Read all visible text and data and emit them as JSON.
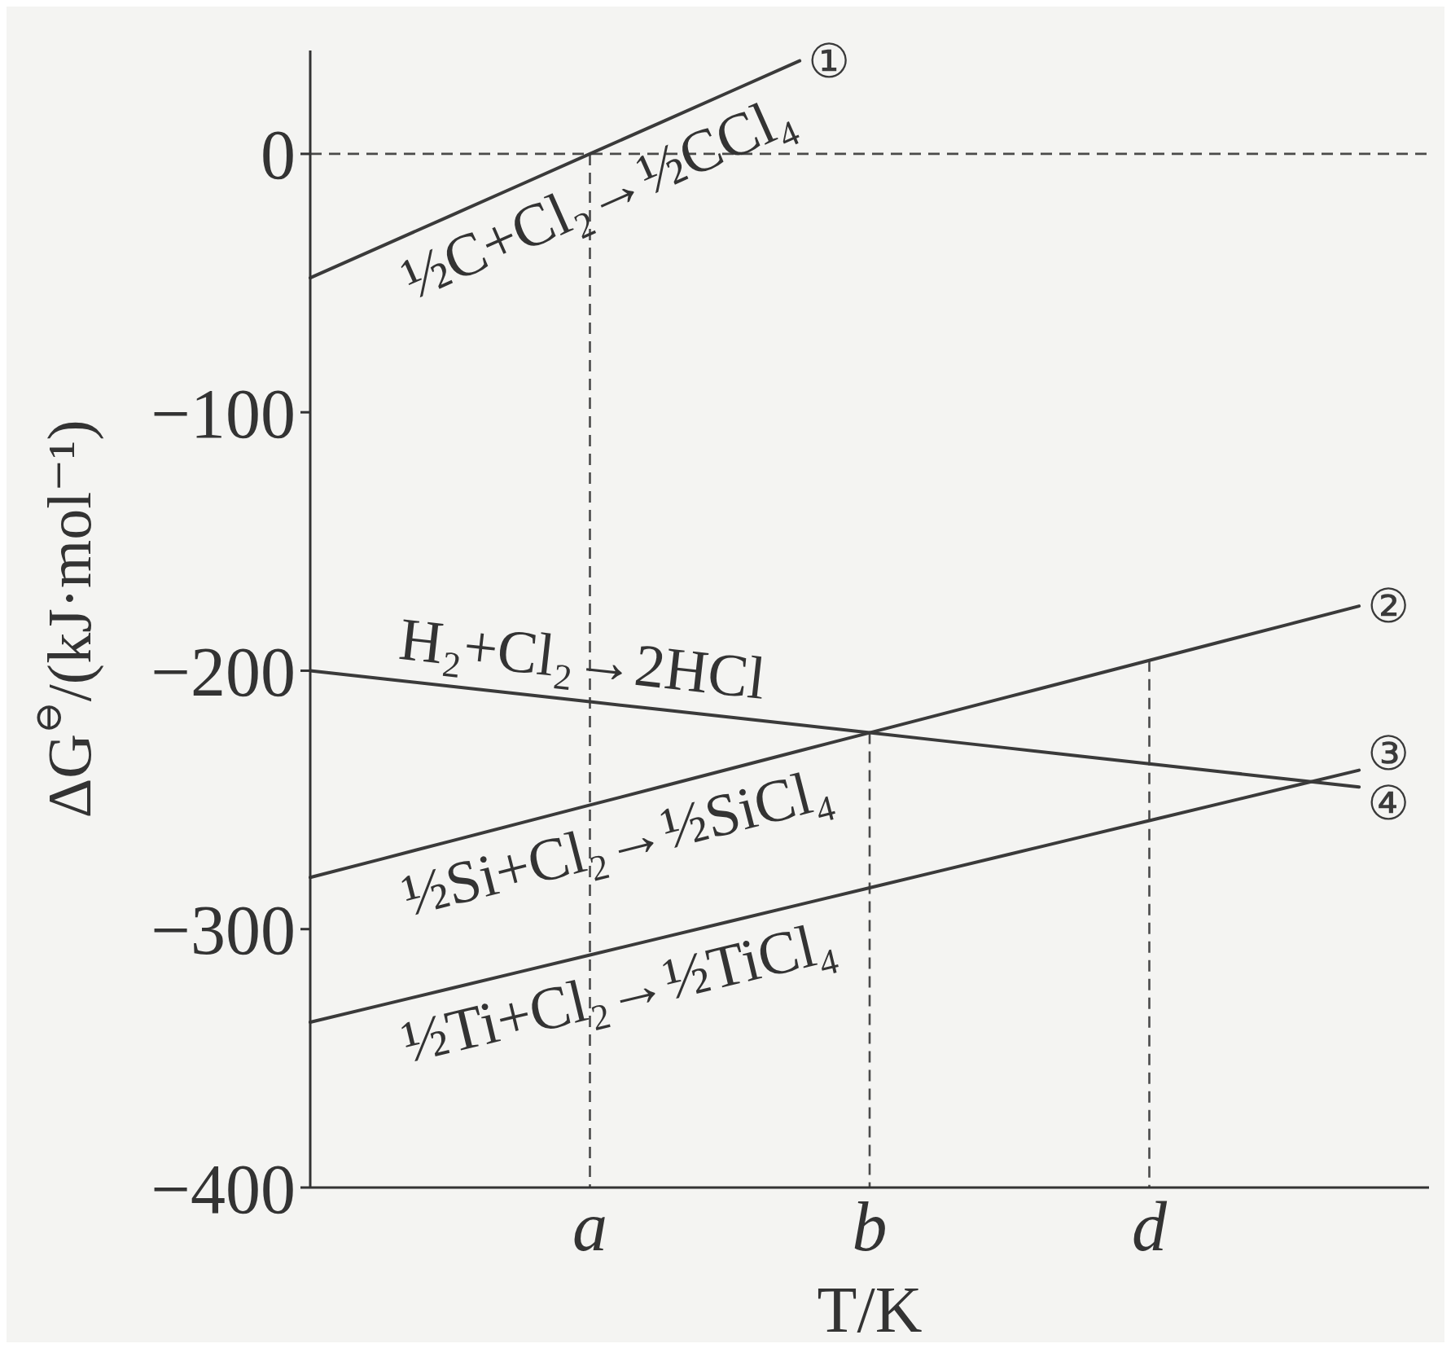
{
  "chart_data": {
    "type": "line",
    "xlabel": "T/K",
    "ylabel": "ΔG$^{⊖}$/(kJ·mol⁻¹)",
    "categories": [
      null,
      null,
      null,
      null,
      "a",
      null,
      null,
      null,
      "b",
      null,
      null,
      null,
      "d",
      null,
      null,
      null,
      null
    ],
    "ylim": [
      -400,
      40
    ],
    "yticks": [
      -400,
      -300,
      -200,
      -100,
      0
    ],
    "marker": "none",
    "line_style": "solid",
    "series": [
      {
        "name": "①",
        "color": "#3a3a3a",
        "values": [
          -48,
          -36,
          -24,
          -12,
          0,
          12,
          24,
          36,
          null,
          null,
          null,
          null,
          null,
          null,
          null,
          null,
          null
        ]
      },
      {
        "name": "②",
        "color": "#3a3a3a",
        "values": [
          -280,
          -273,
          -266,
          -259,
          -252,
          -245,
          -238,
          -231,
          -224,
          -217,
          -210,
          -203,
          -196,
          -189,
          -182,
          -175,
          null
        ]
      },
      {
        "name": "③",
        "color": "#3a3a3a",
        "values": [
          -336,
          -329.5,
          -323,
          -316.5,
          -310,
          -303.5,
          -297,
          -290.5,
          -284,
          -277.5,
          -271,
          -264.5,
          -258,
          -251.5,
          -245,
          -238.5,
          null
        ]
      },
      {
        "name": "④",
        "color": "#3a3a3a",
        "values": [
          -200,
          -203,
          -206,
          -209,
          -212,
          -215,
          -218,
          -221,
          -224,
          -227,
          -230,
          -233,
          -236,
          -239,
          -242,
          -245,
          null
        ]
      }
    ],
    "ref_lines": [
      {
        "axis": "y",
        "value": 0,
        "color": "#4a4a4a",
        "line_style": "dashed"
      },
      {
        "axis": "x",
        "value": "a",
        "color": "#4a4a4a",
        "line_style": "dashed"
      },
      {
        "axis": "x",
        "value": "b",
        "color": "#4a4a4a",
        "line_style": "dashed"
      },
      {
        "axis": "x",
        "value": "d",
        "color": "#4a4a4a",
        "line_style": "dashed"
      }
    ],
    "annotations": [
      "½C+Cl₂→½CCl₄",
      "½Si+Cl₂→½SiCl₄",
      "½Ti+Cl₂→½TiCl₄",
      "H₂+Cl₂→2HCl"
    ]
  }
}
